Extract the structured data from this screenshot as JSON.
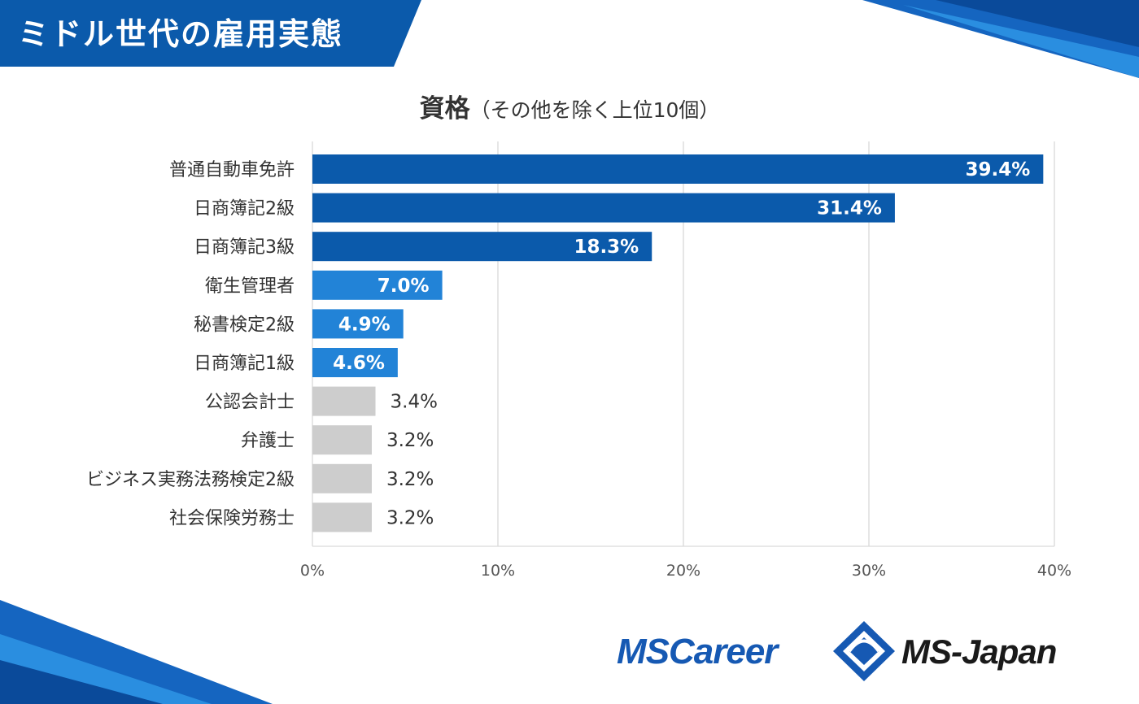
{
  "header": {
    "title": "ミドル世代の雇用実態"
  },
  "chart_data": {
    "type": "bar",
    "orientation": "horizontal",
    "title": "資格",
    "subtitle": "（その他を除く上位10個）",
    "categories": [
      "普通自動車免許",
      "日商簿記2級",
      "日商簿記3級",
      "衛生管理者",
      "秘書検定2級",
      "日商簿記1級",
      "公認会計士",
      "弁護士",
      "ビジネス実務法務検定2級",
      "社会保険労務士"
    ],
    "values": [
      39.4,
      31.4,
      18.3,
      7.0,
      4.9,
      4.6,
      3.4,
      3.2,
      3.2,
      3.2
    ],
    "value_labels": [
      "39.4%",
      "31.4%",
      "18.3%",
      "7.0%",
      "4.9%",
      "4.6%",
      "3.4%",
      "3.2%",
      "3.2%",
      "3.2%"
    ],
    "bar_colors": [
      "#0b5aab",
      "#0b5aab",
      "#0b5aab",
      "#2283d7",
      "#2283d7",
      "#2283d7",
      "#cdcdcd",
      "#cdcdcd",
      "#cdcdcd",
      "#cdcdcd"
    ],
    "xlim": [
      0,
      40
    ],
    "xticks": [
      0,
      10,
      20,
      30,
      40
    ],
    "xtick_labels": [
      "0%",
      "10%",
      "20%",
      "30%",
      "40%"
    ],
    "grid": true,
    "xlabel": "",
    "ylabel": ""
  },
  "logos": {
    "left": "MSCareer",
    "right": "MS-Japan"
  },
  "colors": {
    "banner": "#0b5aab",
    "accent": "#2283d7",
    "text": "#333333"
  }
}
